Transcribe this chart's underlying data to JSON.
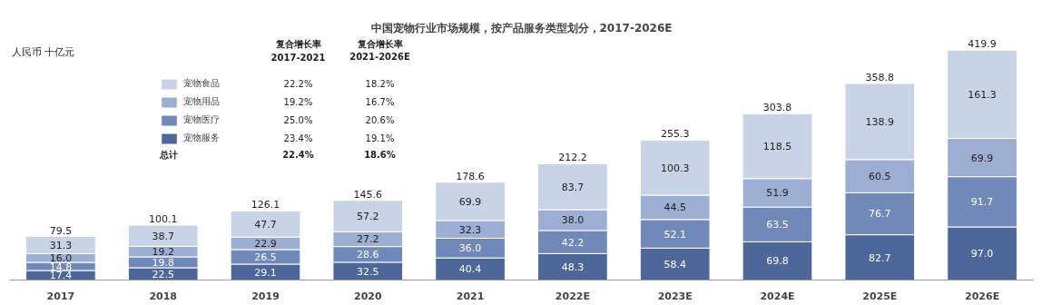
{
  "chart_data": {
    "type": "bar",
    "title": "中国宠物行业市场规模，按产品服务类型划分，2017-2026E",
    "ylabel": "人民币 十亿元",
    "categories": [
      "2017",
      "2018",
      "2019",
      "2020",
      "2021",
      "2022E",
      "2023E",
      "2024E",
      "2025E",
      "2026E"
    ],
    "stacked": true,
    "legend": "top left",
    "grid": false,
    "tick_labels": "x",
    "series": [
      {
        "name": "宠物服务",
        "color": "#4d6898",
        "values": [
          17.4,
          22.5,
          29.1,
          32.5,
          40.4,
          48.3,
          58.4,
          69.8,
          82.7,
          97.0
        ],
        "value_labels": [
          "17.4",
          "22.5",
          "29.1",
          "32.5",
          "40.4",
          "48.3",
          "58.4",
          "69.8",
          "82.7",
          "97.0"
        ]
      },
      {
        "name": "宠物医疗",
        "color": "#7089b8",
        "values": [
          14.8,
          19.8,
          26.5,
          28.6,
          36.0,
          42.2,
          52.1,
          63.5,
          76.7,
          91.7
        ],
        "value_labels": [
          "14.8",
          "19.8",
          "26.5",
          "28.6",
          "36.0",
          "42.2",
          "52.1",
          "63.5",
          "76.7",
          "91.7"
        ]
      },
      {
        "name": "宠物用品",
        "color": "#9cafd2",
        "values": [
          16.0,
          19.2,
          22.9,
          27.2,
          32.3,
          38.0,
          44.5,
          51.9,
          60.5,
          69.9
        ],
        "value_labels": [
          "16.0",
          "19.2",
          "22.9",
          "27.2",
          "32.3",
          "38.0",
          "44.5",
          "51.9",
          "60.5",
          "69.9"
        ]
      },
      {
        "name": "宠物食品",
        "color": "#c8d3e6",
        "values": [
          31.3,
          38.7,
          47.7,
          57.2,
          69.9,
          83.7,
          100.3,
          118.5,
          138.9,
          161.3
        ],
        "value_labels": [
          "31.3",
          "38.7",
          "47.7",
          "57.2",
          "69.9",
          "83.7",
          "100.3",
          "118.5",
          "138.9",
          "161.3"
        ]
      }
    ],
    "totals": [
      "79.5",
      "100.1",
      "126.1",
      "145.6",
      "178.6",
      "212.2",
      "255.3",
      "303.8",
      "358.8",
      "419.9"
    ],
    "annotations": [
      "复合增长率",
      "2017-2021",
      "复合增长率",
      "2021-2026E",
      "22.2%",
      "18.2%",
      "19.2%",
      "16.7%",
      "25.0%",
      "20.6%",
      "23.4%",
      "19.1%",
      "总计",
      "22.4%",
      "18.6%"
    ]
  }
}
